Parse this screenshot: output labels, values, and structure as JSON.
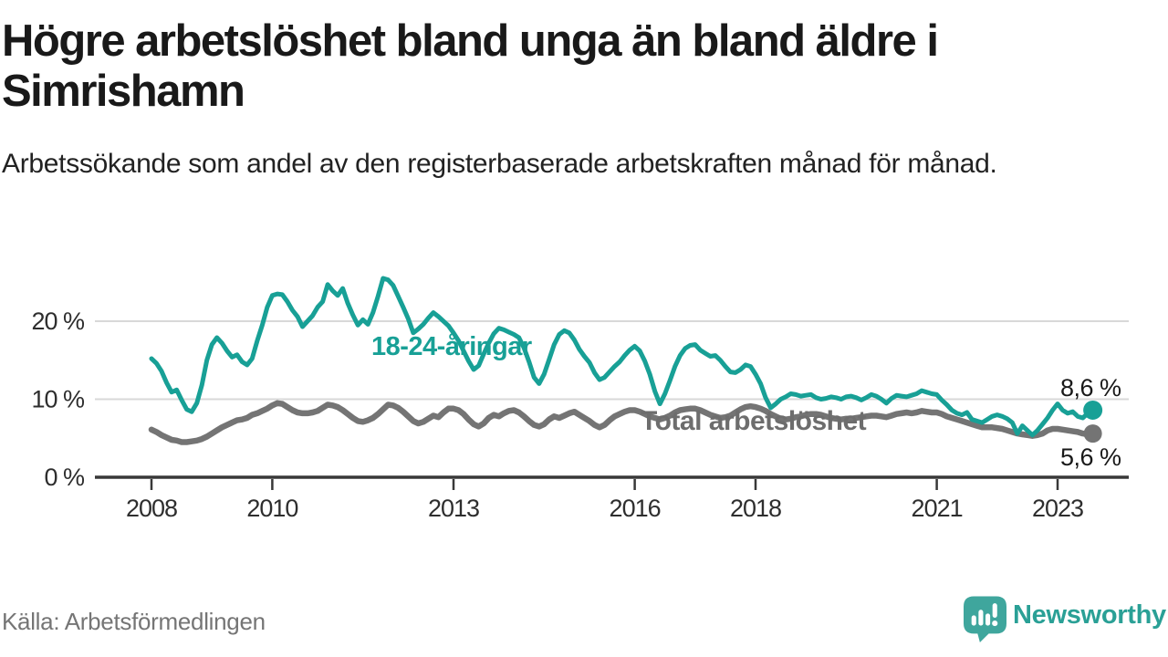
{
  "header": {
    "title_line1": "Högre arbetslöshet bland unga än bland äldre i",
    "title_line2": "Simrishamn",
    "subtitle": "Arbetssökande som andel av den registerbaserade arbetskraften månad för månad."
  },
  "footer": {
    "source": "Källa: Arbetsförmedlingen",
    "brand": "Newsworthy",
    "logo_icon": "bar-chart-speech-bubble-icon"
  },
  "colors": {
    "young_line": "#18a096",
    "total_line": "#747474",
    "total_label": "#6d6d6d",
    "gridline": "#d8d8d8",
    "axis": "#383838",
    "logo_teal": "#3fa69d",
    "brand_text": "#2aa096"
  },
  "chart_data": {
    "type": "line",
    "title": "Högre arbetslöshet bland unga än bland äldre i Simrishamn",
    "subtitle": "Arbetssökande som andel av den registerbaserade arbetskraften månad för månad.",
    "unit": "%",
    "frequency": "monthly",
    "x_start": "2008-01",
    "x_end": "2023-08",
    "grid": "horizontal",
    "legend_position": "inline-labels",
    "ylim": [
      0,
      27
    ],
    "xticks": [
      2008,
      2010,
      2013,
      2016,
      2018,
      2021,
      2023
    ],
    "yticks": [
      {
        "value": 0,
        "label": "0 %"
      },
      {
        "value": 10,
        "label": "10 %"
      },
      {
        "value": 20,
        "label": "20 %"
      }
    ],
    "series": [
      {
        "id": "young",
        "name": "18-24-åringar",
        "color": "#18a096",
        "end_label": "8,6 %",
        "last_value": 8.6,
        "values": [
          15.2,
          14.6,
          13.6,
          12.1,
          10.9,
          11.2,
          9.9,
          8.7,
          8.4,
          9.5,
          11.8,
          15.0,
          17.0,
          17.9,
          17.2,
          16.2,
          15.4,
          15.7,
          14.8,
          14.4,
          15.2,
          17.5,
          19.5,
          21.8,
          23.3,
          23.5,
          23.4,
          22.5,
          21.4,
          20.6,
          19.3,
          20.0,
          20.7,
          21.8,
          22.5,
          24.7,
          23.9,
          23.3,
          24.2,
          22.3,
          20.8,
          19.5,
          20.2,
          19.6,
          21.1,
          23.2,
          25.5,
          25.3,
          24.6,
          23.2,
          21.8,
          20.3,
          18.5,
          19.0,
          19.6,
          20.4,
          21.1,
          20.6,
          20.0,
          19.4,
          18.5,
          17.5,
          16.2,
          14.9,
          13.8,
          14.3,
          15.8,
          17.2,
          18.4,
          19.1,
          18.9,
          18.6,
          18.3,
          17.9,
          16.6,
          14.8,
          12.8,
          12.0,
          13.2,
          15.1,
          17.0,
          18.3,
          18.8,
          18.5,
          17.6,
          16.4,
          15.5,
          14.7,
          13.4,
          12.5,
          12.8,
          13.5,
          14.2,
          14.8,
          15.6,
          16.3,
          16.8,
          16.2,
          14.9,
          13.2,
          11.0,
          9.4,
          10.7,
          12.4,
          14.2,
          15.6,
          16.5,
          16.9,
          17.0,
          16.3,
          15.9,
          15.5,
          15.6,
          15.0,
          14.2,
          13.5,
          13.4,
          13.8,
          14.4,
          14.2,
          13.2,
          12.0,
          10.2,
          8.9,
          9.4,
          10.0,
          10.3,
          10.7,
          10.6,
          10.4,
          10.5,
          10.6,
          10.2,
          10.0,
          10.1,
          10.3,
          10.2,
          10.0,
          10.3,
          10.4,
          10.2,
          9.9,
          10.2,
          10.6,
          10.4,
          10.0,
          9.5,
          10.1,
          10.5,
          10.4,
          10.3,
          10.5,
          10.7,
          11.1,
          10.9,
          10.7,
          10.6,
          9.9,
          9.3,
          8.6,
          8.2,
          8.0,
          8.3,
          7.4,
          7.2,
          7.0,
          7.4,
          7.8,
          8.0,
          7.8,
          7.5,
          7.0,
          5.6,
          6.6,
          6.0,
          5.4,
          6.0,
          6.8,
          7.6,
          8.6,
          9.4,
          8.6,
          8.2,
          8.4,
          7.8,
          7.6,
          8.2,
          8.6
        ]
      },
      {
        "id": "total",
        "name": "Total arbetslöshet",
        "color": "#747474",
        "end_label": "5,6 %",
        "last_value": 5.6,
        "values": [
          6.1,
          5.8,
          5.4,
          5.1,
          4.8,
          4.7,
          4.5,
          4.5,
          4.6,
          4.7,
          4.9,
          5.2,
          5.6,
          6.0,
          6.4,
          6.7,
          7.0,
          7.3,
          7.4,
          7.6,
          8.0,
          8.2,
          8.5,
          8.8,
          9.2,
          9.5,
          9.4,
          9.0,
          8.6,
          8.3,
          8.2,
          8.2,
          8.3,
          8.5,
          8.9,
          9.3,
          9.2,
          9.0,
          8.6,
          8.1,
          7.6,
          7.2,
          7.1,
          7.3,
          7.6,
          8.1,
          8.7,
          9.3,
          9.2,
          8.9,
          8.4,
          7.8,
          7.2,
          6.9,
          7.1,
          7.5,
          7.9,
          7.7,
          8.3,
          8.8,
          8.8,
          8.6,
          8.1,
          7.4,
          6.8,
          6.5,
          6.9,
          7.6,
          8.0,
          7.8,
          8.2,
          8.5,
          8.6,
          8.3,
          7.8,
          7.2,
          6.7,
          6.5,
          6.8,
          7.4,
          7.8,
          7.6,
          7.9,
          8.2,
          8.4,
          8.0,
          7.6,
          7.2,
          6.7,
          6.4,
          6.7,
          7.3,
          7.8,
          8.1,
          8.4,
          8.6,
          8.6,
          8.4,
          8.1,
          7.8,
          7.6,
          7.4,
          7.6,
          7.9,
          8.3,
          8.6,
          8.7,
          8.8,
          8.8,
          8.6,
          8.3,
          8.0,
          7.8,
          7.6,
          7.7,
          7.9,
          8.3,
          8.7,
          9.0,
          9.1,
          9.0,
          8.8,
          8.5,
          8.1,
          7.8,
          7.5,
          7.4,
          7.5,
          7.7,
          7.8,
          8.0,
          8.1,
          8.1,
          8.0,
          7.8,
          7.6,
          7.5,
          7.4,
          7.5,
          7.5,
          7.6,
          7.7,
          7.8,
          7.9,
          7.9,
          7.8,
          7.7,
          7.9,
          8.1,
          8.2,
          8.3,
          8.2,
          8.3,
          8.5,
          8.4,
          8.3,
          8.3,
          8.1,
          7.8,
          7.6,
          7.4,
          7.2,
          7.0,
          6.8,
          6.6,
          6.4,
          6.4,
          6.4,
          6.3,
          6.2,
          6.0,
          5.8,
          5.6,
          5.5,
          5.4,
          5.3,
          5.4,
          5.6,
          6.0,
          6.2,
          6.2,
          6.1,
          6.0,
          5.9,
          5.8,
          5.6,
          5.5,
          5.6
        ]
      }
    ]
  }
}
